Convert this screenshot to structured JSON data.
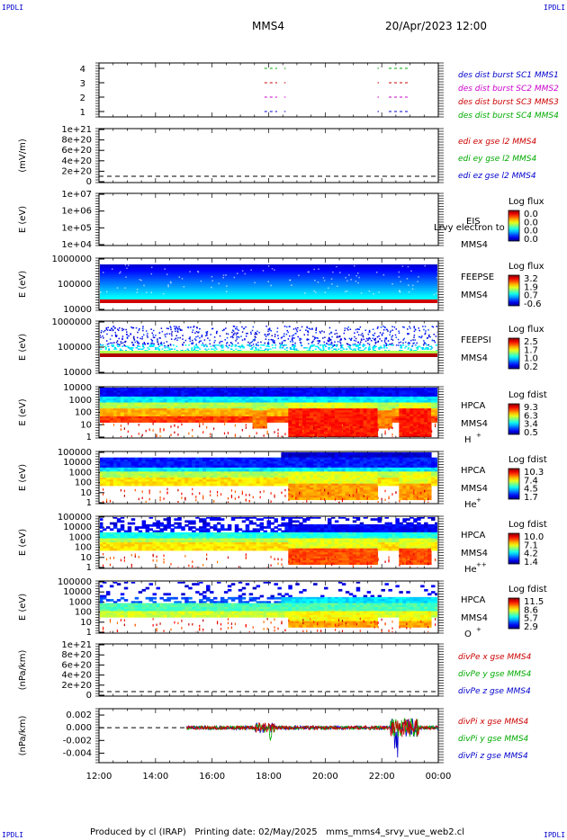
{
  "header": {
    "corner_tl": "IPDLI",
    "corner_tr": "IPDLI",
    "corner_bl": "IPDLI",
    "corner_br": "IPDLI",
    "spacecraft": "MMS4",
    "date_time": "20/Apr/2023 12:00"
  },
  "footer": {
    "produced_by": "Produced by cl (IRAP)",
    "printing_date": "Printing date: 02/May/2025",
    "file_name": "mms_mms4_srvy_vue_web2.cl"
  },
  "colors": {
    "mms1": "#0000cc",
    "mms2": "#cc00cc",
    "mms3": "#cc0000",
    "mms4": "#00aa00",
    "x": "#cc0000",
    "y": "#00aa00",
    "z": "#0000cc"
  },
  "chart_data": [
    {
      "type": "line",
      "panel": "burst-intervals",
      "yticks": [
        "4",
        "3",
        "2",
        "1"
      ],
      "legend": [
        "des dist burst SC1 MMS1",
        "des dist burst SC2 MMS2",
        "des dist burst SC3 MMS3",
        "des dist burst SC4 MMS4"
      ],
      "intervals": [
        {
          "sc": 4,
          "ranges": [
            [
              17.85,
              18.3
            ],
            [
              18.55,
              18.6
            ],
            [
              21.85,
              21.9
            ],
            [
              22.25,
              22.95
            ]
          ]
        },
        {
          "sc": 3,
          "ranges": [
            [
              17.85,
              18.3
            ],
            [
              18.55,
              18.6
            ],
            [
              21.85,
              21.9
            ],
            [
              22.25,
              22.95
            ]
          ]
        },
        {
          "sc": 2,
          "ranges": [
            [
              17.85,
              18.3
            ],
            [
              18.55,
              18.6
            ],
            [
              21.85,
              21.9
            ],
            [
              22.25,
              22.95
            ]
          ]
        },
        {
          "sc": 1,
          "ranges": [
            [
              17.85,
              18.3
            ],
            [
              18.55,
              18.6
            ],
            [
              21.85,
              21.9
            ],
            [
              22.25,
              22.95
            ]
          ]
        }
      ]
    },
    {
      "type": "line",
      "panel": "edi-e",
      "ylabel": "(mV/m)",
      "yticks": [
        "1e+21",
        "8e+20",
        "6e+20",
        "4e+20",
        "2e+20",
        "0"
      ],
      "legend": [
        "edi ex gse l2 MMS4",
        "edi ey gse l2 MMS4",
        "edi ez gse l2 MMS4"
      ]
    },
    {
      "type": "heatmap",
      "panel": "eis",
      "ylabel": "E (eV)",
      "yticks": [
        "1e+07",
        "1e+06",
        "1e+05",
        "1e+04"
      ],
      "labels": [
        "EIS",
        "MMS4"
      ],
      "overlay": "Lrvy electron to",
      "colorbar_title": "Log flux",
      "colorbar_ticks": [
        "0.0",
        "0.0",
        "0.0",
        "0.0"
      ]
    },
    {
      "type": "heatmap",
      "panel": "feepse",
      "ylabel": "E (eV)",
      "yticks": [
        "1000000",
        "100000",
        "10000"
      ],
      "labels": [
        "FEEPSE",
        "MMS4"
      ],
      "colorbar_title": "Log flux",
      "colorbar_ticks": [
        "3.2",
        "1.9",
        "0.7",
        "-0.6"
      ]
    },
    {
      "type": "heatmap",
      "panel": "feepsi",
      "ylabel": "E (eV)",
      "yticks": [
        "1000000",
        "100000",
        "10000"
      ],
      "labels": [
        "FEEPSI",
        "MMS4"
      ],
      "colorbar_title": "Log flux",
      "colorbar_ticks": [
        "2.5",
        "1.7",
        "1.0",
        "0.2"
      ]
    },
    {
      "type": "heatmap",
      "panel": "hpca-h",
      "ylabel": "E (eV)",
      "yticks": [
        "10000",
        "1000",
        "100",
        "10",
        "1"
      ],
      "labels": [
        "HPCA",
        "MMS4"
      ],
      "species": "H",
      "charge": "+",
      "colorbar_title": "Log fdist",
      "colorbar_ticks": [
        "9.3",
        "6.3",
        "3.4",
        "0.5"
      ]
    },
    {
      "type": "heatmap",
      "panel": "hpca-he1",
      "ylabel": "E (eV)",
      "yticks": [
        "100000",
        "10000",
        "1000",
        "100",
        "10",
        "1"
      ],
      "labels": [
        "HPCA",
        "MMS4"
      ],
      "species": "He",
      "charge": "+",
      "colorbar_title": "Log fdist",
      "colorbar_ticks": [
        "10.3",
        "7.4",
        "4.5",
        "1.7"
      ]
    },
    {
      "type": "heatmap",
      "panel": "hpca-he2",
      "ylabel": "E (eV)",
      "yticks": [
        "100000",
        "10000",
        "1000",
        "100",
        "10",
        "1"
      ],
      "labels": [
        "HPCA",
        "MMS4"
      ],
      "species": "He",
      "charge": "++",
      "colorbar_title": "Log fdist",
      "colorbar_ticks": [
        "10.0",
        "7.1",
        "4.2",
        "1.4"
      ]
    },
    {
      "type": "heatmap",
      "panel": "hpca-o",
      "ylabel": "E (eV)",
      "yticks": [
        "100000",
        "10000",
        "1000",
        "100",
        "10",
        "1"
      ],
      "labels": [
        "HPCA",
        "MMS4"
      ],
      "species": "O",
      "charge": "+",
      "colorbar_title": "Log fdist",
      "colorbar_ticks": [
        "11.5",
        "8.6",
        "5.7",
        "2.9"
      ]
    },
    {
      "type": "line",
      "panel": "divpe",
      "ylabel": "(nPa/km)",
      "yticks": [
        "1e+21",
        "8e+20",
        "6e+20",
        "4e+20",
        "2e+20",
        "0"
      ],
      "legend": [
        "divPe x gse MMS4",
        "divPe y gse MMS4",
        "divPe z gse MMS4"
      ]
    },
    {
      "type": "line",
      "panel": "divpi",
      "ylabel": "(nPa/km)",
      "yticks": [
        "0.002",
        "0.000",
        "-0.002",
        "-0.004"
      ],
      "ylim": [
        -0.0055,
        0.003
      ],
      "legend": [
        "divPi x gse MMS4",
        "divPi y gse MMS4",
        "divPi z gse MMS4"
      ],
      "data_start_hour": 15.1
    }
  ],
  "time_axis": {
    "ticks": [
      "12:00",
      "14:00",
      "16:00",
      "18:00",
      "20:00",
      "22:00",
      "00:00"
    ],
    "range_hours": [
      12,
      24
    ]
  }
}
